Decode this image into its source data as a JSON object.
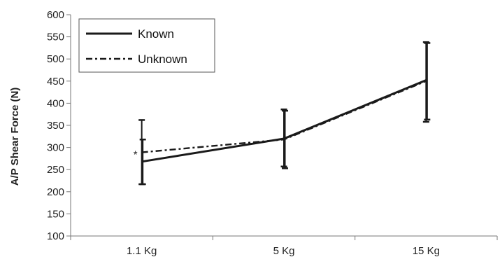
{
  "chart_data": {
    "type": "line",
    "categories": [
      "1.1 Kg",
      "5 Kg",
      "15 Kg"
    ],
    "ylabel": "A/P Shear Force (N)",
    "xlabel": "",
    "ylim": [
      100,
      600
    ],
    "ytick_step": 50,
    "grid": false,
    "legend_position": "top-left",
    "series": [
      {
        "name": "Known",
        "style": "solid",
        "values": [
          268,
          320,
          452
        ],
        "error_upper": [
          362,
          386,
          538
        ],
        "error_lower": [
          217,
          257,
          358
        ]
      },
      {
        "name": "Unknown",
        "style": "dash-dot",
        "values": [
          289,
          318,
          450
        ],
        "error_upper": [
          318,
          383,
          536
        ],
        "error_lower": [
          217,
          253,
          363
        ]
      }
    ],
    "annotations": [
      {
        "text": "*",
        "category": "1.1 Kg",
        "y": 289
      }
    ],
    "colors": {
      "line": "#1a1a1a",
      "axis": "#777777"
    }
  }
}
